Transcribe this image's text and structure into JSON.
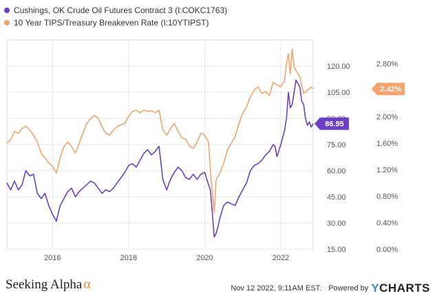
{
  "legend": [
    {
      "label": "Cushings, OK Crude Oil Futures Contract 3 (I:COKC1763)",
      "color": "#6a3fc6"
    },
    {
      "label": "10 Year TIPS/Treasury Breakeven Rate (I:10YTIPST)",
      "color": "#f5a36d"
    }
  ],
  "footer": {
    "brand": "Seeking Alpha",
    "brand_symbol": "α",
    "timestamp": "Nov 12 2022, 9:11AM EST.",
    "powered_by": "Powered by",
    "ycharts": "CHARTS",
    "ycharts_y": "Y"
  },
  "chart_data": {
    "type": "line",
    "xlim": [
      2014.8,
      2022.85
    ],
    "x_ticks": [
      2016,
      2018,
      2020,
      2022
    ],
    "x_tick_labels": [
      "2016",
      "2018",
      "2020",
      "2022"
    ],
    "left_axis": {
      "ylim": [
        15,
        135
      ],
      "ticks": [
        15,
        30,
        45,
        60,
        75,
        90,
        105,
        120
      ],
      "tick_labels": [
        "15.00",
        "30.00",
        "45.00",
        "60.00",
        "75.00",
        "90.00",
        "105.00",
        "120.00"
      ]
    },
    "right_axis": {
      "ylim": [
        0,
        3.16
      ],
      "ticks": [
        0,
        0.4,
        0.8,
        1.2,
        1.6,
        2.0,
        2.4,
        2.8
      ],
      "tick_labels": [
        "0.00%",
        "0.40%",
        "0.80%",
        "1.20%",
        "1.60%",
        "2.00%",
        "2.40%",
        "2.80%"
      ]
    },
    "grid": true,
    "series": [
      {
        "name": "Cushings, OK Crude Oil Futures Contract 3 (I:COKC1763)",
        "axis": "left",
        "color": "#6a3fc6",
        "last_value_label": "86.95",
        "x": [
          2014.8,
          2014.9,
          2015.0,
          2015.1,
          2015.2,
          2015.3,
          2015.4,
          2015.5,
          2015.6,
          2015.7,
          2015.8,
          2015.9,
          2016.0,
          2016.1,
          2016.2,
          2016.3,
          2016.4,
          2016.5,
          2016.6,
          2016.7,
          2016.8,
          2016.9,
          2017.0,
          2017.1,
          2017.2,
          2017.3,
          2017.4,
          2017.5,
          2017.6,
          2017.7,
          2017.8,
          2017.9,
          2018.0,
          2018.1,
          2018.2,
          2018.3,
          2018.4,
          2018.5,
          2018.6,
          2018.7,
          2018.8,
          2018.9,
          2019.0,
          2019.1,
          2019.2,
          2019.3,
          2019.4,
          2019.5,
          2019.6,
          2019.7,
          2019.8,
          2019.9,
          2020.0,
          2020.1,
          2020.15,
          2020.2,
          2020.25,
          2020.3,
          2020.35,
          2020.4,
          2020.5,
          2020.6,
          2020.7,
          2020.8,
          2020.9,
          2021.0,
          2021.1,
          2021.2,
          2021.3,
          2021.4,
          2021.5,
          2021.6,
          2021.7,
          2021.8,
          2021.85,
          2021.9,
          2022.0,
          2022.1,
          2022.15,
          2022.2,
          2022.25,
          2022.3,
          2022.35,
          2022.4,
          2022.45,
          2022.5,
          2022.55,
          2022.6,
          2022.65,
          2022.7,
          2022.75,
          2022.8,
          2022.85
        ],
        "y": [
          53,
          49,
          54,
          49,
          52,
          60,
          57,
          58,
          47,
          44,
          47,
          40,
          35,
          31,
          40,
          44,
          48,
          50,
          45,
          48,
          50,
          52,
          54,
          53,
          50,
          47,
          49,
          48,
          50,
          53,
          56,
          59,
          63,
          64,
          62,
          66,
          70,
          72,
          69,
          71,
          74,
          55,
          49,
          55,
          59,
          62,
          60,
          56,
          55,
          58,
          55,
          58,
          59,
          52,
          49,
          36,
          22,
          24,
          28,
          33,
          40,
          42,
          41,
          40,
          45,
          49,
          53,
          60,
          63,
          64,
          66,
          69,
          71,
          75,
          74,
          68,
          75,
          83,
          90,
          105,
          96,
          98,
          105,
          112,
          110,
          108,
          100,
          98,
          90,
          86,
          88,
          85,
          86.95
        ]
      },
      {
        "name": "10 Year TIPS/Treasury Breakeven Rate (I:10YTIPST)",
        "axis": "right",
        "color": "#f5a36d",
        "last_value_label": "2.42%",
        "x": [
          2014.8,
          2014.9,
          2015.0,
          2015.1,
          2015.2,
          2015.3,
          2015.4,
          2015.5,
          2015.6,
          2015.7,
          2015.8,
          2015.9,
          2016.0,
          2016.1,
          2016.2,
          2016.3,
          2016.4,
          2016.5,
          2016.6,
          2016.7,
          2016.8,
          2016.9,
          2017.0,
          2017.1,
          2017.2,
          2017.3,
          2017.4,
          2017.5,
          2017.6,
          2017.7,
          2017.8,
          2017.9,
          2018.0,
          2018.1,
          2018.2,
          2018.3,
          2018.4,
          2018.5,
          2018.6,
          2018.7,
          2018.8,
          2018.9,
          2019.0,
          2019.1,
          2019.2,
          2019.3,
          2019.4,
          2019.5,
          2019.6,
          2019.7,
          2019.8,
          2019.9,
          2020.0,
          2020.1,
          2020.15,
          2020.2,
          2020.25,
          2020.3,
          2020.4,
          2020.5,
          2020.6,
          2020.7,
          2020.8,
          2020.9,
          2021.0,
          2021.1,
          2021.2,
          2021.3,
          2021.4,
          2021.5,
          2021.6,
          2021.7,
          2021.8,
          2021.9,
          2022.0,
          2022.1,
          2022.15,
          2022.2,
          2022.25,
          2022.3,
          2022.35,
          2022.4,
          2022.5,
          2022.6,
          2022.7,
          2022.8,
          2022.85
        ],
        "y": [
          1.6,
          1.65,
          1.78,
          1.75,
          1.82,
          1.86,
          1.8,
          1.72,
          1.62,
          1.45,
          1.38,
          1.3,
          1.25,
          1.15,
          1.38,
          1.55,
          1.62,
          1.55,
          1.45,
          1.6,
          1.75,
          1.9,
          1.97,
          2.02,
          1.98,
          1.85,
          1.75,
          1.72,
          1.8,
          1.85,
          1.88,
          1.9,
          2.0,
          2.08,
          2.1,
          2.06,
          2.1,
          2.08,
          2.09,
          2.06,
          2.1,
          1.8,
          1.72,
          1.82,
          1.9,
          1.78,
          1.68,
          1.66,
          1.56,
          1.52,
          1.62,
          1.75,
          1.72,
          1.62,
          1.2,
          0.87,
          0.55,
          1.05,
          1.15,
          1.3,
          1.5,
          1.6,
          1.7,
          1.9,
          2.05,
          2.15,
          2.3,
          2.4,
          2.45,
          2.35,
          2.38,
          2.32,
          2.52,
          2.48,
          2.45,
          2.55,
          2.8,
          2.95,
          2.65,
          3.02,
          2.75,
          2.7,
          2.6,
          2.35,
          2.4,
          2.45,
          2.42
        ]
      }
    ]
  }
}
